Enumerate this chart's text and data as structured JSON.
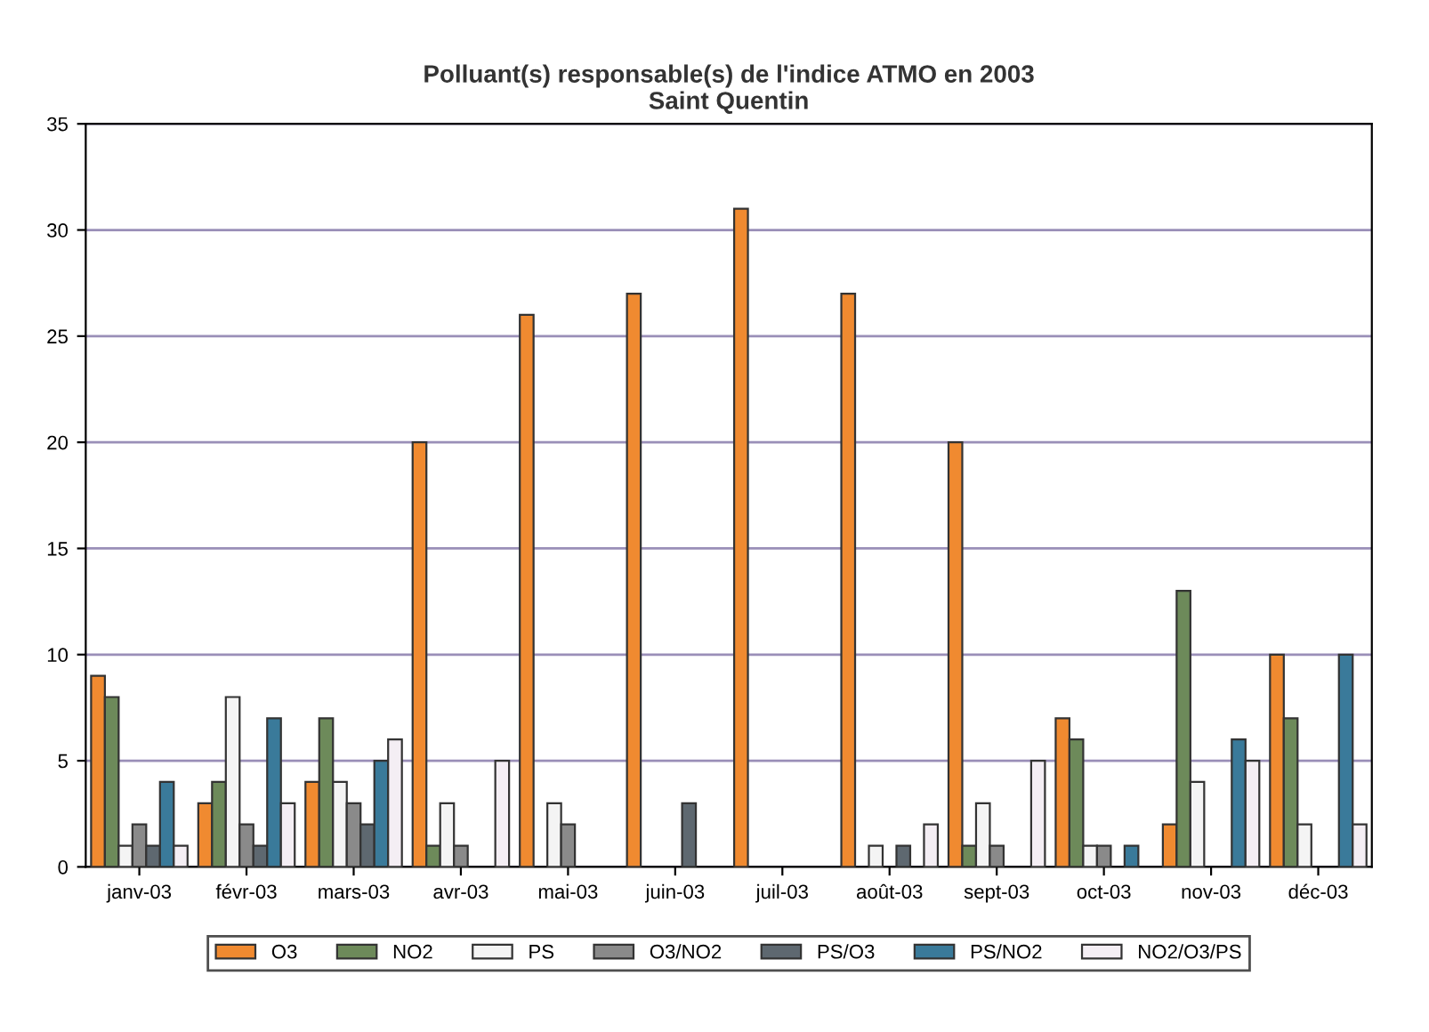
{
  "chart_data": {
    "type": "bar",
    "title": "Polluant(s) responsable(s) de l'indice ATMO en 2003\nSaint Quentin",
    "categories": [
      "janv-03",
      "févr-03",
      "mars-03",
      "avr-03",
      "mai-03",
      "juin-03",
      "juil-03",
      "août-03",
      "sept-03",
      "oct-03",
      "nov-03",
      "déc-03"
    ],
    "series": [
      {
        "name": "O3",
        "color": "#f08a30",
        "values": [
          9,
          3,
          4,
          20,
          26,
          27,
          31,
          27,
          20,
          7,
          2,
          10
        ]
      },
      {
        "name": "NO2",
        "color": "#6d8a5a",
        "values": [
          8,
          4,
          7,
          1,
          0,
          0,
          0,
          0,
          1,
          6,
          13,
          7
        ]
      },
      {
        "name": "PS",
        "color": "#f4f4f4",
        "values": [
          1,
          8,
          4,
          3,
          3,
          0,
          0,
          1,
          3,
          1,
          4,
          2
        ]
      },
      {
        "name": "O3/NO2",
        "color": "#8a8a8a",
        "values": [
          2,
          2,
          3,
          1,
          2,
          0,
          0,
          0,
          1,
          1,
          0,
          0
        ]
      },
      {
        "name": "PS/O3",
        "color": "#5e6870",
        "values": [
          1,
          1,
          2,
          0,
          0,
          3,
          0,
          1,
          0,
          0,
          0,
          0
        ]
      },
      {
        "name": "PS/NO2",
        "color": "#3a7a9a",
        "values": [
          4,
          7,
          5,
          0,
          0,
          0,
          0,
          0,
          0,
          1,
          6,
          10
        ]
      },
      {
        "name": "NO2/O3/PS",
        "color": "#f4eef4",
        "values": [
          1,
          3,
          6,
          5,
          0,
          0,
          0,
          2,
          5,
          0,
          5,
          2
        ]
      }
    ],
    "ylim": [
      0,
      35
    ],
    "yticks": [
      0,
      5,
      10,
      15,
      20,
      25,
      30,
      35
    ],
    "grid": "y",
    "legend": "bottom"
  }
}
